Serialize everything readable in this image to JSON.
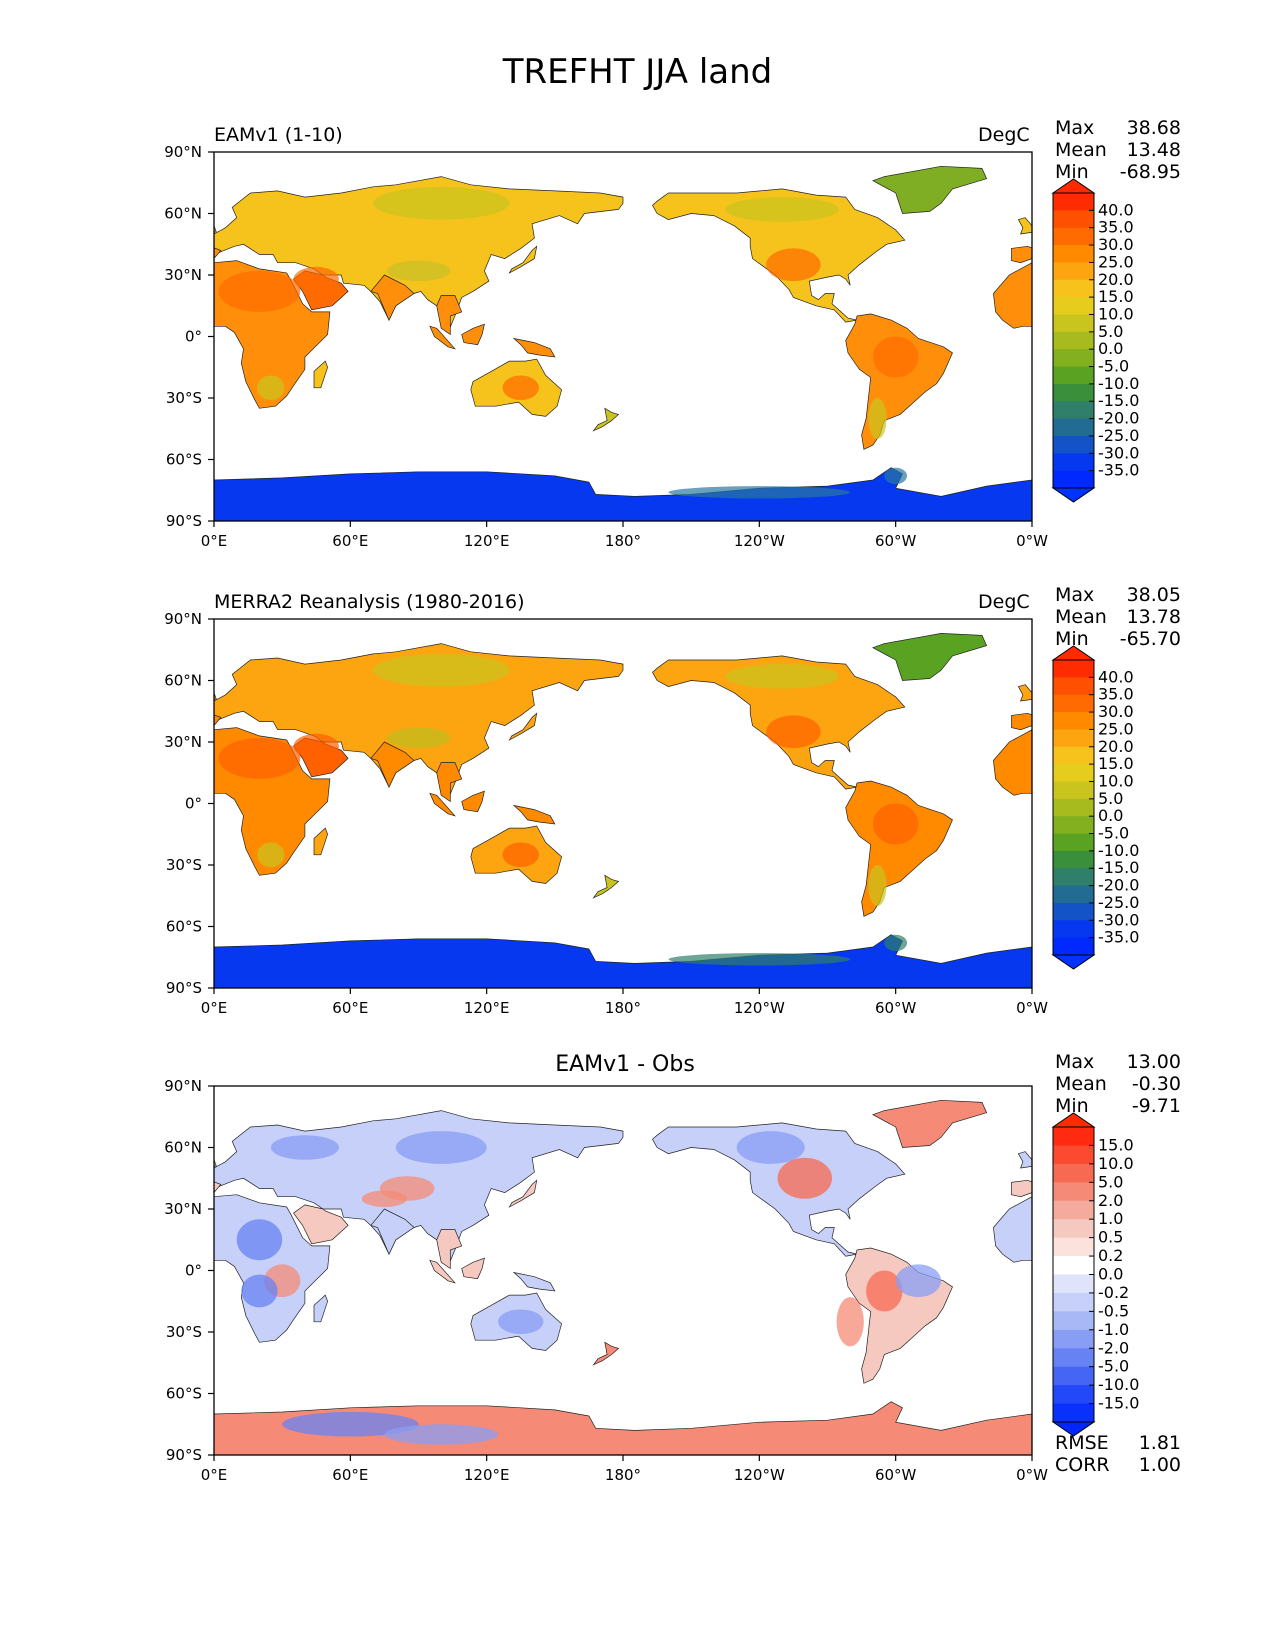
{
  "title": "TREFHT JJA land",
  "panels": [
    {
      "left_title": "EAMv1 (1-10)",
      "center_title": "",
      "units": "DegC",
      "stats": [
        {
          "label": "Max",
          "value": "38.68"
        },
        {
          "label": "Mean",
          "value": "13.48"
        },
        {
          "label": "Min",
          "value": "-68.95"
        }
      ],
      "colorbar": {
        "labels": [
          "40.0",
          "35.0",
          "30.0",
          "25.0",
          "20.0",
          "15.0",
          "10.0",
          "5.0",
          "0.0",
          "-5.0",
          "-10.0",
          "-15.0",
          "-20.0",
          "-25.0",
          "-30.0",
          "-35.0"
        ],
        "colors": [
          "#fe2c00",
          "#ff4f00",
          "#ff6b00",
          "#ff8a00",
          "#fca510",
          "#f8c21c",
          "#e6cc1c",
          "#c9c41e",
          "#a8bb1e",
          "#82b01e",
          "#5aa222",
          "#3a8f3a",
          "#2f7f6a",
          "#226c94",
          "#1452c8",
          "#0638f0",
          "#0028ff"
        ],
        "top_color": "#ff2a00",
        "bottom_color": "#0033ff",
        "extend": "both"
      }
    },
    {
      "left_title": "MERRA2 Reanalysis (1980-2016)",
      "center_title": "",
      "units": "DegC",
      "stats": [
        {
          "label": "Max",
          "value": "38.05"
        },
        {
          "label": "Mean",
          "value": "13.78"
        },
        {
          "label": "Min",
          "value": "-65.70"
        }
      ],
      "colorbar": {
        "labels": [
          "40.0",
          "35.0",
          "30.0",
          "25.0",
          "20.0",
          "15.0",
          "10.0",
          "5.0",
          "0.0",
          "-5.0",
          "-10.0",
          "-15.0",
          "-20.0",
          "-25.0",
          "-30.0",
          "-35.0"
        ],
        "colors": [
          "#fe2c00",
          "#ff4f00",
          "#ff6b00",
          "#ff8a00",
          "#fca510",
          "#f8c21c",
          "#e6cc1c",
          "#c9c41e",
          "#a8bb1e",
          "#82b01e",
          "#5aa222",
          "#3a8f3a",
          "#2f7f6a",
          "#226c94",
          "#1452c8",
          "#0638f0",
          "#0028ff"
        ],
        "top_color": "#ff2a00",
        "bottom_color": "#0033ff",
        "extend": "both"
      }
    },
    {
      "left_title": "",
      "center_title": "EAMv1 - Obs",
      "units": "",
      "stats": [
        {
          "label": "Max",
          "value": "13.00"
        },
        {
          "label": "Mean",
          "value": "-0.30"
        },
        {
          "label": "Min",
          "value": "-9.71"
        }
      ],
      "colorbar": {
        "labels": [
          "15.0",
          "10.0",
          "5.0",
          "2.0",
          "1.0",
          "0.5",
          "0.2",
          "0.0",
          "-0.2",
          "-0.5",
          "-1.0",
          "-2.0",
          "-5.0",
          "-10.0",
          "-15.0"
        ],
        "colors": [
          "#ff2a10",
          "#fb4a30",
          "#f76a52",
          "#f58b77",
          "#f4ab9d",
          "#f6c9c0",
          "#fbe2dc",
          "#ffffff",
          "#dfe4fb",
          "#c6d0f8",
          "#a8b8f6",
          "#889ef4",
          "#6783f3",
          "#4566f4",
          "#2248f8",
          "#0a30fb"
        ],
        "top_color": "#ff2a00",
        "bottom_color": "#0026ff",
        "extend": "both"
      },
      "footer_stats": [
        {
          "label": "RMSE",
          "value": "1.81"
        },
        {
          "label": "CORR",
          "value": "1.00"
        }
      ]
    }
  ],
  "lat_ticks": [
    "90°N",
    "60°N",
    "30°N",
    "0°",
    "30°S",
    "60°S",
    "90°S"
  ],
  "lon_ticks": [
    "0°E",
    "60°E",
    "120°E",
    "180°",
    "120°W",
    "60°W",
    "0°W"
  ],
  "field_colors": {
    "model": {
      "tropics": "#ff8f0a",
      "midlat": "#f6c21c",
      "highlat": "#c9c41e",
      "greenland": "#7fae24",
      "antarctica": "#0638f0",
      "antarctic_coast": "#2a78a0",
      "hot": "#ff6b00",
      "plateau": "#c8c028"
    },
    "obs": {
      "tropics": "#ff8a00",
      "midlat": "#fca510",
      "highlat": "#c9c41e",
      "greenland": "#5aa222",
      "antarctica": "#0638f0",
      "antarctic_coast": "#2f7f6a",
      "hot": "#ff6100",
      "plateau": "#bfbd20"
    },
    "diff": {
      "warm": "#f58b77",
      "cool": "#889ef4",
      "lightwarm": "#f6c9c0",
      "lightcool": "#c6d0f8",
      "strongwarm": "#f76a52",
      "strongcool": "#6783f3"
    }
  }
}
